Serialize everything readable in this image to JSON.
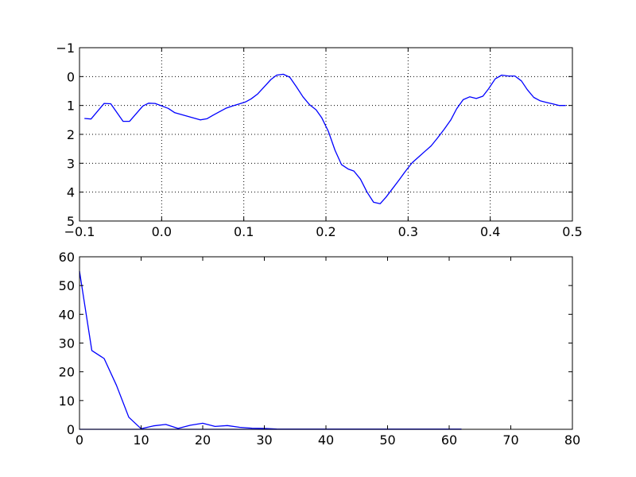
{
  "chart_data": [
    {
      "type": "line",
      "title": "",
      "xlabel": "",
      "ylabel": "",
      "xlim": [
        -0.1,
        0.5
      ],
      "ylim": [
        -1,
        5
      ],
      "y_inverted": true,
      "grid": true,
      "line_color": "#0000ff",
      "x_ticks": [
        -0.1,
        0.0,
        0.1,
        0.2,
        0.3,
        0.4,
        0.5
      ],
      "x_tick_labels": [
        "−0.1",
        "0.0",
        "0.1",
        "0.2",
        "0.3",
        "0.4",
        "0.5"
      ],
      "y_ticks": [
        -1,
        0,
        1,
        2,
        3,
        4,
        5
      ],
      "y_tick_labels": [
        "−1",
        "0",
        "1",
        "2",
        "3",
        "4",
        "5"
      ],
      "series": [
        {
          "x": [
            -0.094,
            -0.086,
            -0.07,
            -0.062,
            -0.047,
            -0.039,
            -0.023,
            -0.016,
            -0.008,
            0.008,
            0.016,
            0.031,
            0.047,
            0.055,
            0.063,
            0.078,
            0.086,
            0.094,
            0.102,
            0.109,
            0.117,
            0.125,
            0.133,
            0.14,
            0.148,
            0.156,
            0.164,
            0.172,
            0.18,
            0.188,
            0.195,
            0.203,
            0.211,
            0.219,
            0.227,
            0.234,
            0.242,
            0.25,
            0.258,
            0.266,
            0.273,
            0.281,
            0.289,
            0.297,
            0.305,
            0.313,
            0.32,
            0.328,
            0.336,
            0.344,
            0.352,
            0.359,
            0.367,
            0.375,
            0.383,
            0.391,
            0.398,
            0.406,
            0.414,
            0.422,
            0.43,
            0.438,
            0.445,
            0.453,
            0.461,
            0.469,
            0.477,
            0.484,
            0.492
          ],
          "y": [
            1.45,
            1.47,
            0.93,
            0.94,
            1.55,
            1.55,
            1.02,
            0.92,
            0.93,
            1.1,
            1.25,
            1.37,
            1.5,
            1.46,
            1.33,
            1.1,
            1.02,
            0.95,
            0.88,
            0.77,
            0.6,
            0.35,
            0.1,
            -0.05,
            -0.08,
            0.02,
            0.35,
            0.7,
            0.97,
            1.15,
            1.43,
            1.9,
            2.55,
            3.05,
            3.2,
            3.27,
            3.55,
            4.0,
            4.35,
            4.4,
            4.18,
            3.88,
            3.58,
            3.27,
            2.98,
            2.78,
            2.6,
            2.4,
            2.12,
            1.82,
            1.5,
            1.12,
            0.8,
            0.7,
            0.76,
            0.68,
            0.42,
            0.08,
            -0.05,
            -0.02,
            -0.02,
            0.15,
            0.45,
            0.72,
            0.84,
            0.9,
            0.95,
            1.0,
            1.0
          ]
        }
      ]
    },
    {
      "type": "line",
      "title": "",
      "xlabel": "",
      "ylabel": "",
      "xlim": [
        0,
        80
      ],
      "ylim": [
        0,
        60
      ],
      "grid": false,
      "line_color": "#0000ff",
      "x_ticks": [
        0,
        10,
        20,
        30,
        40,
        50,
        60,
        70,
        80
      ],
      "x_tick_labels": [
        "0",
        "10",
        "20",
        "30",
        "40",
        "50",
        "60",
        "70",
        "80"
      ],
      "y_ticks": [
        0,
        10,
        20,
        30,
        40,
        50,
        60
      ],
      "y_tick_labels": [
        "0",
        "10",
        "20",
        "30",
        "40",
        "50",
        "60"
      ],
      "series": [
        {
          "x": [
            0,
            2,
            4,
            6,
            8,
            10,
            12,
            14,
            16,
            18,
            20,
            22,
            24,
            26,
            28,
            30,
            32,
            34,
            36,
            38,
            40,
            42,
            44,
            46,
            48,
            50,
            52,
            54,
            56,
            58,
            60,
            62
          ],
          "y": [
            55,
            27.4,
            24.6,
            15.3,
            4.2,
            0.2,
            1.2,
            1.7,
            0.3,
            1.4,
            2.1,
            1.0,
            1.3,
            0.7,
            0.4,
            0.3,
            0.1,
            0.05,
            0.05,
            0.05,
            0.05,
            0.05,
            0.05,
            0.05,
            0.05,
            0.05,
            0.05,
            0.05,
            0.05,
            0.05,
            0.05,
            0.05
          ]
        },
        {
          "x": [
            0,
            62
          ],
          "y": [
            0,
            0
          ]
        }
      ]
    }
  ]
}
